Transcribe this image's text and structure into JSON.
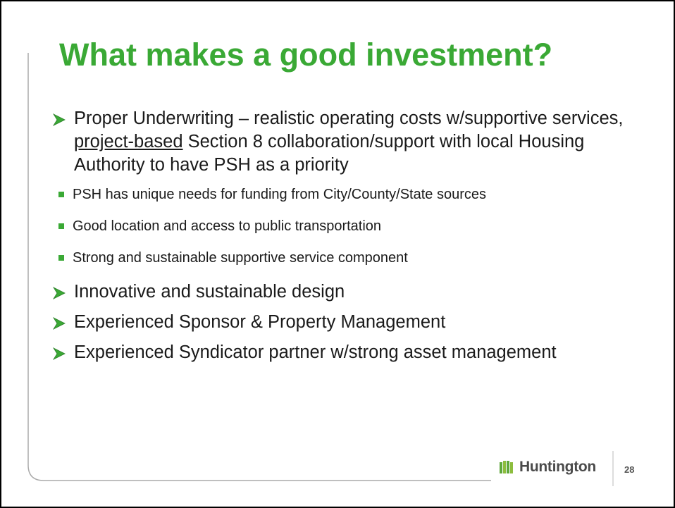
{
  "title": "What makes a good investment?",
  "bullets": [
    {
      "parts": [
        "Proper Underwriting – realistic operating costs w/supportive services, ",
        "project-based",
        " Section 8 collaboration/support with local Housing Authority to have PSH as a priority"
      ],
      "sub": [
        "PSH has unique needs for funding from City/County/State sources",
        "Good location and access to public transportation",
        "Strong and sustainable supportive service component"
      ]
    },
    {
      "parts": [
        "Innovative and sustainable design"
      ]
    },
    {
      "parts": [
        "Experienced Sponsor & Property Management"
      ]
    },
    {
      "parts": [
        "Experienced Syndicator partner w/strong asset management"
      ]
    }
  ],
  "footer": {
    "logo": "Huntington",
    "page": "28"
  }
}
